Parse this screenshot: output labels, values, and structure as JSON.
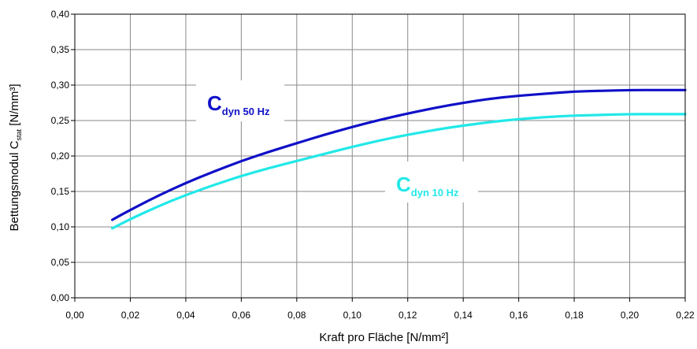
{
  "chart_data": {
    "type": "line",
    "title": "",
    "xlabel": "Kraft pro Fläche [N/mm²]",
    "ylabel": {
      "before": "Bettungsmodul  C",
      "subscript": "stat",
      "after": " [N/mm³]"
    },
    "xlim": [
      0,
      0.22
    ],
    "ylim": [
      0,
      0.4
    ],
    "x_ticks": [
      0,
      0.02,
      0.04,
      0.06,
      0.08,
      0.1,
      0.12,
      0.14,
      0.16,
      0.18,
      0.2,
      0.22
    ],
    "x_tick_labels": [
      "0,00",
      "0,02",
      "0,04",
      "0,06",
      "0,08",
      "0,10",
      "0,12",
      "0,14",
      "0,16",
      "0,18",
      "0,20",
      "0,22"
    ],
    "y_ticks": [
      0,
      0.05,
      0.1,
      0.15,
      0.2,
      0.25,
      0.3,
      0.35,
      0.4
    ],
    "y_tick_labels": [
      "0,00",
      "0,05",
      "0,10",
      "0,15",
      "0,20",
      "0,25",
      "0,30",
      "0,35",
      "0,40"
    ],
    "grid": true,
    "series": [
      {
        "label_main": "C",
        "label_sub": "dyn 50 Hz",
        "color": "#1010c8",
        "x": [
          0.0135,
          0.02,
          0.03,
          0.04,
          0.05,
          0.06,
          0.07,
          0.08,
          0.09,
          0.1,
          0.11,
          0.12,
          0.13,
          0.14,
          0.15,
          0.16,
          0.17,
          0.18,
          0.19,
          0.2,
          0.21,
          0.22
        ],
        "y": [
          0.11,
          0.124,
          0.144,
          0.162,
          0.178,
          0.193,
          0.206,
          0.218,
          0.23,
          0.241,
          0.251,
          0.26,
          0.268,
          0.275,
          0.281,
          0.285,
          0.288,
          0.291,
          0.292,
          0.293,
          0.293,
          0.293
        ]
      },
      {
        "label_main": "C",
        "label_sub": "dyn 10 Hz",
        "color": "#22e8e8",
        "x": [
          0.0135,
          0.02,
          0.03,
          0.04,
          0.05,
          0.06,
          0.07,
          0.08,
          0.09,
          0.1,
          0.11,
          0.12,
          0.13,
          0.14,
          0.15,
          0.16,
          0.17,
          0.18,
          0.19,
          0.2,
          0.21,
          0.22
        ],
        "y": [
          0.098,
          0.111,
          0.129,
          0.145,
          0.159,
          0.172,
          0.183,
          0.193,
          0.203,
          0.213,
          0.222,
          0.23,
          0.237,
          0.243,
          0.248,
          0.252,
          0.255,
          0.257,
          0.258,
          0.259,
          0.259,
          0.259
        ]
      }
    ]
  }
}
